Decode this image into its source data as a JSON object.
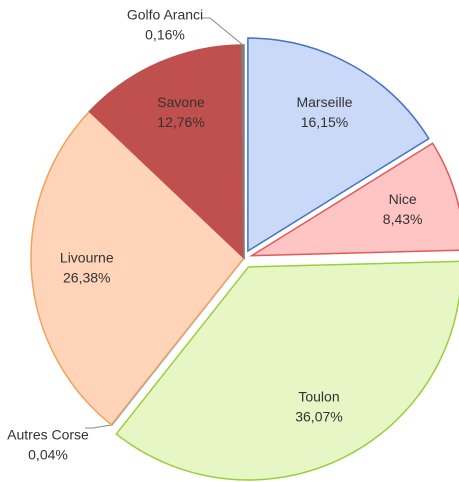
{
  "chart_data": {
    "type": "pie",
    "categories": [
      "Marseille",
      "Nice",
      "Toulon",
      "Autres Corse",
      "Livourne",
      "Savone",
      "Golfo Aranci"
    ],
    "values": [
      16.15,
      8.43,
      36.07,
      0.04,
      26.38,
      12.76,
      0.16
    ],
    "value_labels": [
      "16,15%",
      "8,43%",
      "36,07%",
      "0,04%",
      "26,38%",
      "12,76%",
      "0,16%"
    ],
    "colors": [
      "#c9d9f7",
      "#ffc4c4",
      "#e6f6c4",
      "#b3eaff",
      "#ffd4b8",
      "#c0504d",
      "#7f7f7f"
    ],
    "edge_colors": [
      "#4472c4",
      "#e05a5a",
      "#9bcf3a",
      "#3c9fd1",
      "#f0a25e",
      "#c0504d",
      "#7f7f7f"
    ]
  }
}
